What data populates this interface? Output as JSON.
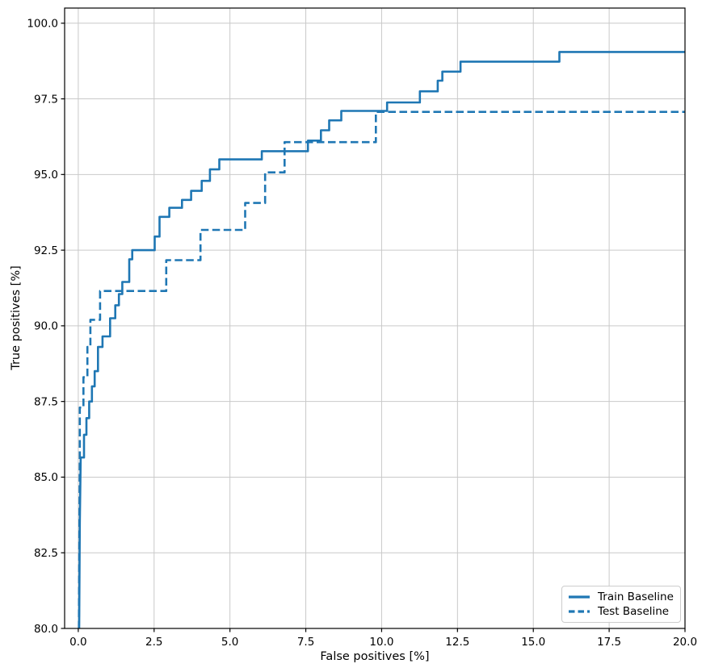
{
  "figure": {
    "background": "#ffffff"
  },
  "chart_data": {
    "type": "line",
    "subtype": "step-curve (ROC-style)",
    "title": "",
    "xlabel": "False positives [%]",
    "ylabel": "True positives [%]",
    "xlim": [
      -0.45,
      20
    ],
    "ylim": [
      80,
      100.5
    ],
    "xticks": [
      0.0,
      2.5,
      5.0,
      7.5,
      10.0,
      12.5,
      15.0,
      17.5,
      20.0
    ],
    "yticks": [
      80.0,
      82.5,
      85.0,
      87.5,
      90.0,
      92.5,
      95.0,
      97.5,
      100.0
    ],
    "xtick_labels": [
      "0.0",
      "2.5",
      "5.0",
      "7.5",
      "10.0",
      "12.5",
      "15.0",
      "17.5",
      "20.0"
    ],
    "ytick_labels": [
      "80.0",
      "82.5",
      "85.0",
      "87.5",
      "90.0",
      "92.5",
      "95.0",
      "97.5",
      "100.0"
    ],
    "grid": true,
    "grid_color": "#c9c9c9",
    "spine_color": "#000000",
    "line_color": "#1f77b4",
    "legend_position": "lower right",
    "series": [
      {
        "name": "Train Baseline",
        "style": "solid",
        "points": [
          [
            0.03,
            80.0
          ],
          [
            0.05,
            83.5
          ],
          [
            0.08,
            85.65
          ],
          [
            0.19,
            85.65
          ],
          [
            0.19,
            86.4
          ],
          [
            0.27,
            86.4
          ],
          [
            0.27,
            86.95
          ],
          [
            0.36,
            86.95
          ],
          [
            0.36,
            87.5
          ],
          [
            0.45,
            87.5
          ],
          [
            0.45,
            88.0
          ],
          [
            0.54,
            88.0
          ],
          [
            0.54,
            88.5
          ],
          [
            0.65,
            88.5
          ],
          [
            0.65,
            89.3
          ],
          [
            0.8,
            89.3
          ],
          [
            0.8,
            89.65
          ],
          [
            1.05,
            89.65
          ],
          [
            1.05,
            90.25
          ],
          [
            1.22,
            90.25
          ],
          [
            1.22,
            90.68
          ],
          [
            1.34,
            90.68
          ],
          [
            1.34,
            91.05
          ],
          [
            1.45,
            91.05
          ],
          [
            1.45,
            91.45
          ],
          [
            1.68,
            91.45
          ],
          [
            1.68,
            92.2
          ],
          [
            1.78,
            92.2
          ],
          [
            1.78,
            92.5
          ],
          [
            2.52,
            92.5
          ],
          [
            2.52,
            92.95
          ],
          [
            2.68,
            92.95
          ],
          [
            2.68,
            93.6
          ],
          [
            3.0,
            93.6
          ],
          [
            3.0,
            93.9
          ],
          [
            3.42,
            93.9
          ],
          [
            3.42,
            94.16
          ],
          [
            3.72,
            94.16
          ],
          [
            3.72,
            94.46
          ],
          [
            4.07,
            94.46
          ],
          [
            4.07,
            94.79
          ],
          [
            4.34,
            94.79
          ],
          [
            4.34,
            95.17
          ],
          [
            4.65,
            95.17
          ],
          [
            4.65,
            95.5
          ],
          [
            6.05,
            95.5
          ],
          [
            6.05,
            95.77
          ],
          [
            7.57,
            95.77
          ],
          [
            7.57,
            96.12
          ],
          [
            8.0,
            96.12
          ],
          [
            8.0,
            96.46
          ],
          [
            8.27,
            96.46
          ],
          [
            8.27,
            96.79
          ],
          [
            8.67,
            96.79
          ],
          [
            8.67,
            97.1
          ],
          [
            10.18,
            97.1
          ],
          [
            10.18,
            97.38
          ],
          [
            11.26,
            97.38
          ],
          [
            11.26,
            97.75
          ],
          [
            11.85,
            97.75
          ],
          [
            11.85,
            98.1
          ],
          [
            12.0,
            98.1
          ],
          [
            12.0,
            98.4
          ],
          [
            12.6,
            98.4
          ],
          [
            12.6,
            98.73
          ],
          [
            15.86,
            98.73
          ],
          [
            15.86,
            99.05
          ],
          [
            20.0,
            99.05
          ]
        ]
      },
      {
        "name": "Test Baseline",
        "style": "dashed",
        "points": [
          [
            0.02,
            80.0
          ],
          [
            0.04,
            84.0
          ],
          [
            0.05,
            85.7
          ],
          [
            0.05,
            87.3
          ],
          [
            0.17,
            87.3
          ],
          [
            0.17,
            88.3
          ],
          [
            0.3,
            88.3
          ],
          [
            0.3,
            89.3
          ],
          [
            0.4,
            89.3
          ],
          [
            0.4,
            90.2
          ],
          [
            0.72,
            90.2
          ],
          [
            0.72,
            91.15
          ],
          [
            2.9,
            91.15
          ],
          [
            2.9,
            92.17
          ],
          [
            4.03,
            92.17
          ],
          [
            4.03,
            93.17
          ],
          [
            5.5,
            93.17
          ],
          [
            5.5,
            94.06
          ],
          [
            6.16,
            94.06
          ],
          [
            6.16,
            95.07
          ],
          [
            6.8,
            95.07
          ],
          [
            6.8,
            96.07
          ],
          [
            9.81,
            96.07
          ],
          [
            9.81,
            97.07
          ],
          [
            20.0,
            97.07
          ]
        ]
      }
    ]
  },
  "legend": {
    "items": [
      {
        "label": "Train Baseline",
        "style": "solid"
      },
      {
        "label": "Test Baseline",
        "style": "dashed"
      }
    ]
  }
}
